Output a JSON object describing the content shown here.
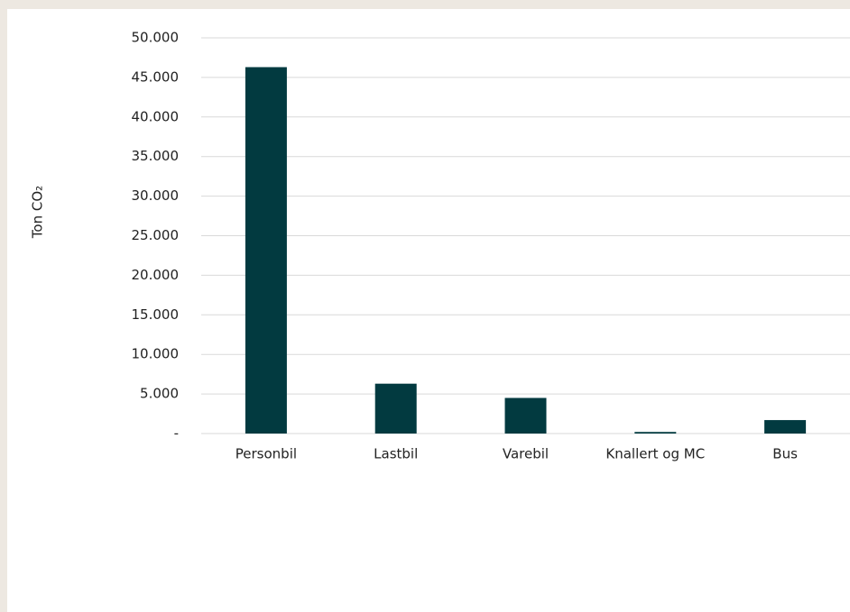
{
  "chart_data": {
    "type": "bar",
    "y_label": "Ton CO₂",
    "categories": [
      "Personbil",
      "Lastbil",
      "Varebil",
      "Knallert og MC",
      "Bus"
    ],
    "values": [
      46300,
      6300,
      4500,
      200,
      1700
    ],
    "color": "#023a40",
    "ylim": [
      0,
      50000
    ],
    "yticks": [
      {
        "value": 0,
        "label": "-"
      },
      {
        "value": 5000,
        "label": "5.000"
      },
      {
        "value": 10000,
        "label": "10.000"
      },
      {
        "value": 15000,
        "label": "15.000"
      },
      {
        "value": 20000,
        "label": "20.000"
      },
      {
        "value": 25000,
        "label": "25.000"
      },
      {
        "value": 30000,
        "label": "30.000"
      },
      {
        "value": 35000,
        "label": "35.000"
      },
      {
        "value": 40000,
        "label": "40.000"
      },
      {
        "value": 45000,
        "label": "45.000"
      },
      {
        "value": 50000,
        "label": "50.000"
      }
    ],
    "grid": true
  }
}
